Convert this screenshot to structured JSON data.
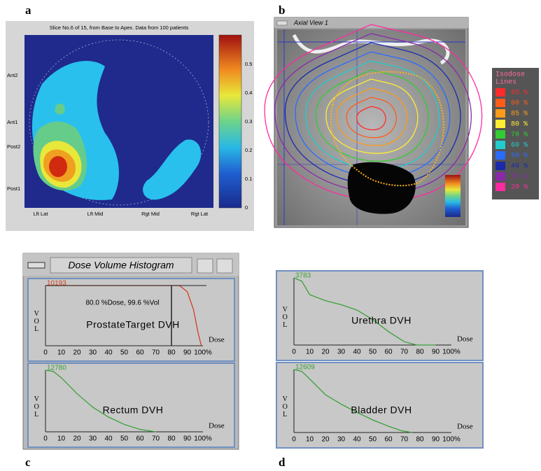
{
  "panel_labels": [
    "a",
    "b",
    "c",
    "d"
  ],
  "panel_a": {
    "title": "Slice No.6 of 15, from Base to Apex. Data from 100 patients",
    "y_labels": [
      "Ant2",
      "Ant1",
      "Post2",
      "Post1"
    ],
    "x_labels": [
      "Lft Lat",
      "Lft Mid",
      "Rgt Mid",
      "Rgt Lat"
    ],
    "colorbar_labels": [
      "0.5",
      "0.4",
      "0.3",
      "0.2",
      "0.1",
      "0"
    ]
  },
  "panel_b": {
    "window_title": "Axial View 1",
    "legend_title": [
      "Isodose",
      "Lines"
    ],
    "legend_entries": [
      {
        "label": "95 %",
        "color": "#ff2a2a"
      },
      {
        "label": "90 %",
        "color": "#ff5c1a"
      },
      {
        "label": "85 %",
        "color": "#ff9a1a"
      },
      {
        "label": "80 %",
        "color": "#ffee33"
      },
      {
        "label": "70 %",
        "color": "#33cc33"
      },
      {
        "label": "60 %",
        "color": "#22cccc"
      },
      {
        "label": "50 %",
        "color": "#2a6aff"
      },
      {
        "label": "40 %",
        "color": "#1a2aaa"
      },
      {
        "label": "30 %",
        "color": "#8a2aaa"
      },
      {
        "label": "20 %",
        "color": "#ff2aa0"
      }
    ]
  },
  "panel_c": {
    "window_title": "Dose Volume Histogram",
    "plots": [
      {
        "max_label": "10193",
        "name": "ProstateTarget DVH",
        "annotation": "80.0 %Dose, 99.6 %Vol",
        "y_label": "VOL",
        "x_label": "Dose",
        "x_ticks": [
          "0",
          "10",
          "20",
          "30",
          "40",
          "50",
          "60",
          "70",
          "80",
          "90",
          "100%"
        ]
      },
      {
        "max_label": "12780",
        "name": "Rectum DVH",
        "y_label": "VOL",
        "x_label": "Dose",
        "x_ticks": [
          "0",
          "10",
          "20",
          "30",
          "40",
          "50",
          "60",
          "70",
          "80",
          "90",
          "100%"
        ]
      }
    ]
  },
  "panel_d": {
    "plots": [
      {
        "max_label": "3783",
        "name": "Urethra DVH",
        "y_label": "VOL",
        "x_label": "Dose",
        "x_ticks": [
          "0",
          "10",
          "20",
          "30",
          "40",
          "50",
          "60",
          "70",
          "80",
          "90",
          "100%"
        ]
      },
      {
        "max_label": "12609",
        "name": "Bladder DVH",
        "y_label": "VOL",
        "x_label": "Dose",
        "x_ticks": [
          "0",
          "10",
          "20",
          "30",
          "40",
          "50",
          "60",
          "70",
          "80",
          "90",
          "100%"
        ]
      }
    ]
  }
}
